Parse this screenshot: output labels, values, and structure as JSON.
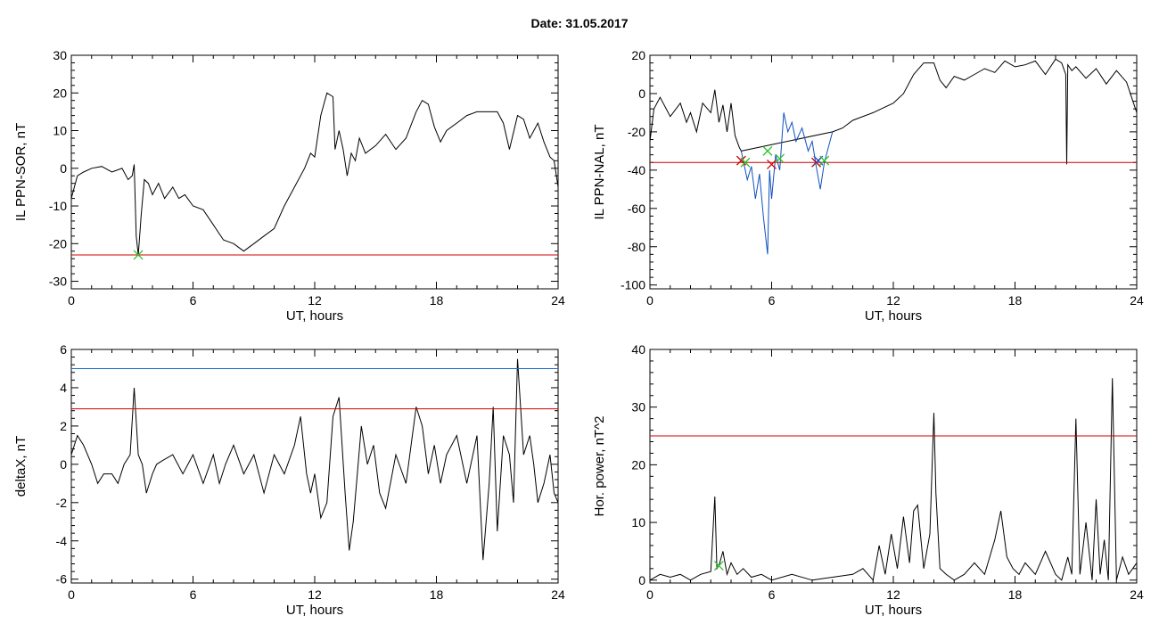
{
  "title": "Date:  31.05.2017",
  "chart_data": [
    {
      "type": "line",
      "ylabel": "IL PPN-SOR, nT",
      "xlabel": "UT, hours",
      "xlim": [
        0,
        24
      ],
      "ylim": [
        -32,
        30
      ],
      "xticks": [
        0,
        6,
        12,
        18,
        24
      ],
      "yticks": [
        30,
        20,
        10,
        0,
        -10,
        -20,
        -30
      ],
      "hlines": [
        {
          "y": -23,
          "color": "#d00000"
        }
      ],
      "markers": [
        {
          "x": 3.3,
          "y": -23,
          "color": "#30c030"
        }
      ],
      "series": [
        {
          "color": "#000000",
          "x": [
            0,
            0.3,
            0.6,
            1.0,
            1.5,
            2.0,
            2.5,
            2.8,
            3.0,
            3.1,
            3.2,
            3.3,
            3.45,
            3.6,
            3.8,
            4.0,
            4.3,
            4.6,
            5.0,
            5.3,
            5.6,
            6.0,
            6.5,
            7.0,
            7.5,
            8.0,
            8.5,
            9.0,
            9.5,
            10.0,
            10.5,
            11.0,
            11.5,
            11.8,
            12.0,
            12.3,
            12.6,
            12.9,
            13.0,
            13.2,
            13.4,
            13.6,
            13.8,
            14.0,
            14.2,
            14.5,
            15.0,
            15.5,
            16.0,
            16.5,
            17.0,
            17.3,
            17.6,
            17.9,
            18.2,
            18.5,
            19.0,
            19.5,
            20.0,
            20.5,
            21.0,
            21.3,
            21.6,
            22.0,
            22.3,
            22.6,
            23.0,
            23.3,
            23.6,
            23.8,
            24.0
          ],
          "y": [
            -8,
            -2,
            -1,
            0,
            0.5,
            -1,
            0,
            -3,
            -2,
            1,
            -18,
            -23,
            -12,
            -3,
            -4,
            -7,
            -4,
            -8,
            -5,
            -8,
            -7,
            -10,
            -11,
            -15,
            -19,
            -20,
            -22,
            -20,
            -18,
            -16,
            -10,
            -5,
            0,
            4,
            3,
            14,
            20,
            19,
            5,
            10,
            5,
            -2,
            4,
            2,
            8,
            4,
            6,
            9,
            5,
            8,
            15,
            18,
            17,
            11,
            7,
            10,
            12,
            14,
            15,
            15,
            15,
            12,
            5,
            14,
            13,
            8,
            12,
            7,
            3,
            2,
            -5
          ]
        }
      ]
    },
    {
      "type": "line",
      "ylabel": "IL PPN-NAL, nT",
      "xlabel": "UT, hours",
      "xlim": [
        0,
        24
      ],
      "ylim": [
        -102,
        20
      ],
      "xticks": [
        0,
        6,
        12,
        18,
        24
      ],
      "yticks": [
        20,
        0,
        -20,
        -40,
        -60,
        -80,
        -100
      ],
      "hlines": [
        {
          "y": -36,
          "color": "#d00000"
        }
      ],
      "markers": [
        {
          "x": 4.5,
          "y": -35,
          "color": "#d00000"
        },
        {
          "x": 4.7,
          "y": -36,
          "color": "#30c030"
        },
        {
          "x": 5.8,
          "y": -30,
          "color": "#30c030"
        },
        {
          "x": 6.0,
          "y": -37,
          "color": "#d00000"
        },
        {
          "x": 6.4,
          "y": -34,
          "color": "#30c030"
        },
        {
          "x": 8.2,
          "y": -36,
          "color": "#d00000"
        },
        {
          "x": 8.3,
          "y": -35,
          "color": "#2050c0"
        },
        {
          "x": 8.6,
          "y": -35,
          "color": "#30c030"
        }
      ],
      "series": [
        {
          "color": "#000000",
          "x": [
            0,
            0.2,
            0.5,
            1.0,
            1.5,
            1.8,
            2.0,
            2.3,
            2.6,
            3.0,
            3.2,
            3.4,
            3.6,
            3.8,
            4.0,
            4.2,
            4.4,
            4.5,
            9.0,
            9.5,
            10.0,
            11.0,
            12.0,
            12.5,
            13.0,
            13.5,
            14.0,
            14.3,
            14.6,
            15.0,
            15.5,
            16.0,
            16.5,
            17.0,
            17.5,
            18.0,
            18.5,
            19.0,
            19.5,
            20.0,
            20.3,
            20.5,
            20.55,
            20.6,
            20.8,
            21.0,
            21.5,
            22.0,
            22.5,
            23.0,
            23.5,
            24.0
          ],
          "y": [
            -25,
            -8,
            -2,
            -12,
            -5,
            -15,
            -10,
            -20,
            -5,
            -10,
            2,
            -15,
            -6,
            -20,
            -5,
            -22,
            -28,
            -30,
            -20,
            -18,
            -14,
            -10,
            -5,
            0,
            10,
            16,
            16,
            7,
            3,
            9,
            7,
            10,
            13,
            11,
            17,
            14,
            15,
            17,
            10,
            18,
            16,
            10,
            -37,
            15,
            12,
            14,
            8,
            13,
            5,
            12,
            6,
            -10
          ]
        },
        {
          "color": "#1050c0",
          "x": [
            4.5,
            4.8,
            5.0,
            5.2,
            5.4,
            5.6,
            5.8,
            5.9,
            6.0,
            6.2,
            6.4,
            6.6,
            6.8,
            7.0,
            7.2,
            7.5,
            7.8,
            8.0,
            8.2,
            8.4,
            8.6,
            9.0
          ],
          "y": [
            -30,
            -45,
            -38,
            -55,
            -42,
            -65,
            -84,
            -40,
            -55,
            -32,
            -40,
            -10,
            -20,
            -15,
            -25,
            -18,
            -30,
            -25,
            -38,
            -50,
            -36,
            -20
          ]
        }
      ]
    },
    {
      "type": "line",
      "ylabel": "deltaX, nT",
      "xlabel": "UT, hours",
      "xlim": [
        0,
        24
      ],
      "ylim": [
        -6.2,
        6
      ],
      "xticks": [
        0,
        6,
        12,
        18,
        24
      ],
      "yticks": [
        6,
        4,
        2,
        0,
        -2,
        -4,
        -6
      ],
      "hlines": [
        {
          "y": 5.0,
          "color": "#1a6fd0"
        },
        {
          "y": 2.9,
          "color": "#d00000"
        }
      ],
      "markers": [],
      "series": [
        {
          "color": "#000000",
          "x": [
            0,
            0.3,
            0.6,
            1.0,
            1.3,
            1.6,
            2.0,
            2.3,
            2.6,
            2.9,
            3.1,
            3.3,
            3.5,
            3.7,
            4.0,
            4.2,
            4.5,
            5.0,
            5.5,
            6.0,
            6.5,
            7.0,
            7.3,
            7.6,
            8.0,
            8.5,
            9.0,
            9.5,
            10.0,
            10.5,
            11.0,
            11.3,
            11.6,
            11.8,
            12.0,
            12.3,
            12.6,
            12.9,
            13.2,
            13.5,
            13.7,
            13.9,
            14.1,
            14.3,
            14.6,
            14.9,
            15.2,
            15.5,
            16.0,
            16.5,
            17.0,
            17.3,
            17.6,
            17.9,
            18.2,
            18.5,
            19.0,
            19.5,
            20.0,
            20.3,
            20.6,
            20.8,
            21.0,
            21.3,
            21.6,
            21.8,
            22.0,
            22.3,
            22.6,
            22.8,
            23.0,
            23.3,
            23.6,
            23.8,
            24.0
          ],
          "y": [
            0.5,
            1.5,
            1.0,
            0,
            -1.0,
            -0.5,
            -0.5,
            -1.0,
            0,
            0.5,
            4.0,
            0.5,
            0,
            -1.5,
            -0.5,
            0,
            0.2,
            0.5,
            -0.5,
            0.5,
            -1.0,
            0.5,
            -1.0,
            0,
            1.0,
            -0.5,
            0.5,
            -1.5,
            0.5,
            -0.5,
            1.0,
            2.5,
            -0.5,
            -1.5,
            -0.5,
            -2.8,
            -2.0,
            2.5,
            3.5,
            -1.5,
            -4.5,
            -3.0,
            -0.5,
            2.0,
            0,
            1.0,
            -1.5,
            -2.3,
            0.5,
            -1.0,
            3.0,
            2.0,
            -0.5,
            1.0,
            -1.0,
            0.5,
            1.5,
            -1.0,
            1.5,
            -5.0,
            -1.0,
            3.0,
            -3.5,
            1.5,
            0.5,
            -2.0,
            5.5,
            0.5,
            1.5,
            0,
            -2.0,
            -1.0,
            0.5,
            -1.5,
            -2.0
          ]
        }
      ]
    },
    {
      "type": "line",
      "ylabel": "Hor. power, nT^2",
      "xlabel": "UT, hours",
      "xlim": [
        0,
        24
      ],
      "ylim": [
        -0.5,
        40
      ],
      "xticks": [
        0,
        6,
        12,
        18,
        24
      ],
      "yticks": [
        40,
        30,
        20,
        10,
        0
      ],
      "hlines": [
        {
          "y": 25,
          "color": "#d00000"
        }
      ],
      "markers": [
        {
          "x": 3.4,
          "y": 2.5,
          "color": "#30c030"
        }
      ],
      "series": [
        {
          "color": "#000000",
          "x": [
            0,
            0.5,
            1.0,
            1.5,
            2.0,
            2.5,
            3.0,
            3.2,
            3.3,
            3.4,
            3.6,
            3.8,
            4.0,
            4.3,
            4.6,
            5.0,
            5.5,
            6.0,
            7.0,
            8.0,
            9.0,
            10.0,
            10.5,
            11.0,
            11.3,
            11.6,
            11.9,
            12.2,
            12.5,
            12.8,
            13.0,
            13.2,
            13.5,
            13.8,
            14.0,
            14.1,
            14.3,
            14.6,
            15.0,
            15.5,
            16.0,
            16.5,
            17.0,
            17.3,
            17.6,
            17.9,
            18.2,
            18.5,
            19.0,
            19.5,
            20.0,
            20.3,
            20.6,
            20.8,
            21.0,
            21.2,
            21.5,
            21.8,
            22.0,
            22.2,
            22.4,
            22.6,
            22.8,
            23.0,
            23.3,
            23.6,
            24.0
          ],
          "y": [
            0,
            1,
            0.5,
            1,
            0,
            1,
            1.5,
            14.5,
            2,
            2.5,
            5,
            1,
            3,
            1,
            2,
            0.5,
            1,
            0,
            1,
            0,
            0.5,
            1,
            2,
            0,
            6,
            1,
            8,
            2,
            11,
            3,
            12,
            13,
            2,
            8,
            29,
            15,
            2,
            1,
            0,
            1,
            3,
            1,
            7,
            12,
            4,
            2,
            1,
            3,
            1,
            5,
            1,
            0,
            4,
            1,
            28,
            1,
            10,
            0,
            14,
            1,
            7,
            0,
            35,
            0,
            4,
            1,
            3
          ]
        }
      ]
    }
  ]
}
